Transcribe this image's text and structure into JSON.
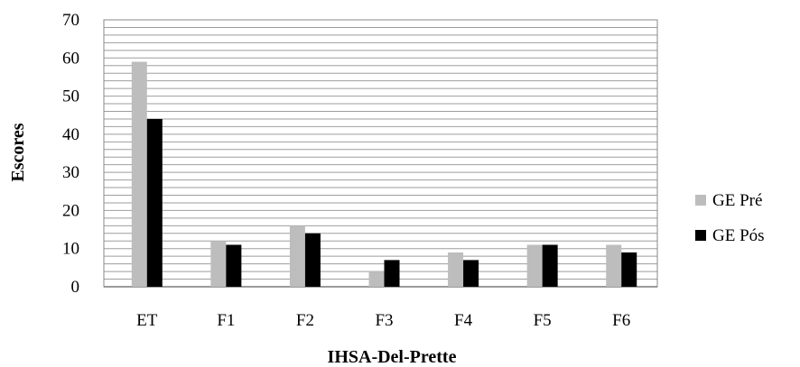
{
  "chart_data": {
    "type": "bar",
    "title": "",
    "xlabel": "IHSA-Del-Prette",
    "ylabel": "Escores",
    "categories": [
      "ET",
      "F1",
      "F2",
      "F3",
      "F4",
      "F5",
      "F6"
    ],
    "series": [
      {
        "name": "GE Pré",
        "values": [
          59,
          12,
          16,
          4,
          9,
          11,
          11
        ],
        "color": "#bdbdbd"
      },
      {
        "name": "GE Pós",
        "values": [
          44,
          11,
          14,
          7,
          7,
          11,
          9
        ],
        "color": "#000000"
      }
    ],
    "ylim": [
      0,
      70
    ],
    "yticks": [
      0,
      10,
      20,
      30,
      40,
      50,
      60,
      70
    ],
    "grid": true,
    "legend_position": "right"
  }
}
